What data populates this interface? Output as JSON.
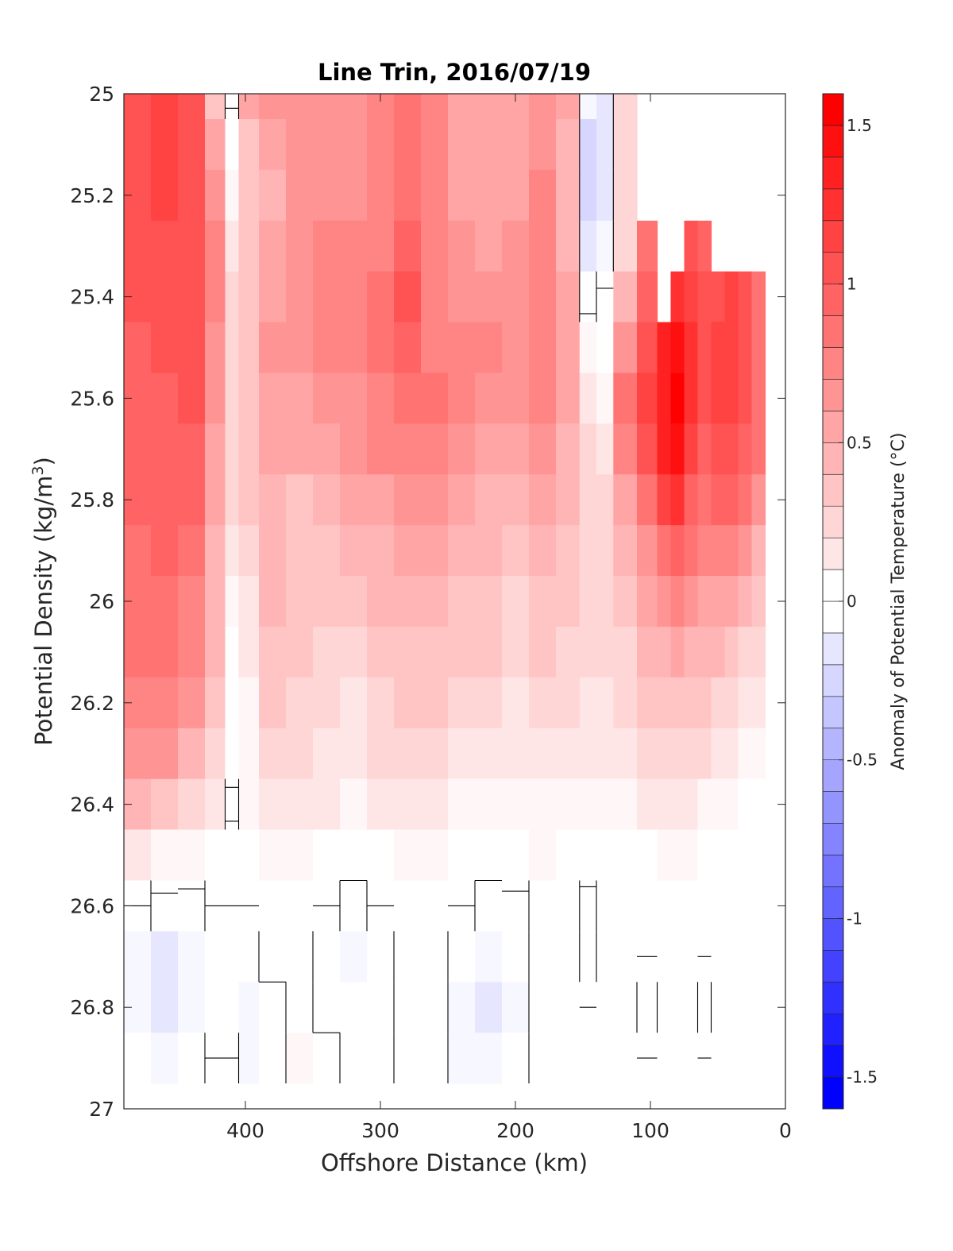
{
  "chart_data": {
    "type": "heatmap",
    "title": "Line Trin, 2016/07/19",
    "xlabel": "Offshore Distance (km)",
    "ylabel": "Potential Density (kg/m",
    "ylabel_superscript": "3",
    "ylabel_suffix": ")",
    "xlim": [
      490,
      0
    ],
    "ylim": [
      25,
      27
    ],
    "x_reversed": true,
    "y_reversed": true,
    "xticks": [
      400,
      300,
      200,
      100,
      0
    ],
    "xtick_labels": [
      "400",
      "300",
      "200",
      "100",
      "0"
    ],
    "yticks": [
      25,
      25.2,
      25.4,
      25.6,
      25.8,
      26,
      26.2,
      26.4,
      26.6,
      26.8,
      27
    ],
    "ytick_labels": [
      "25",
      "25.2",
      "25.4",
      "25.6",
      "25.8",
      "26",
      "26.2",
      "26.4",
      "26.6",
      "26.8",
      "27"
    ],
    "colorbar": {
      "label": "Anomaly of Potential Temperature (°C)",
      "range": [
        -1.6,
        1.6
      ],
      "step": 0.1,
      "ticks": [
        1.5,
        1,
        0.5,
        0,
        -0.5,
        -1,
        -1.5
      ],
      "tick_labels": [
        "1.5",
        "1",
        "0.5",
        "0",
        "-0.5",
        "-1",
        "-1.5"
      ]
    },
    "zero_contour": true,
    "grid": false,
    "x": [
      480,
      460,
      440,
      420,
      410,
      400,
      380,
      360,
      340,
      320,
      300,
      280,
      260,
      240,
      220,
      200,
      180,
      160,
      145,
      135,
      120,
      100,
      90,
      80,
      70,
      60,
      50,
      40,
      30,
      20
    ],
    "y": [
      25.0,
      25.1,
      25.2,
      25.3,
      25.4,
      25.5,
      25.6,
      25.7,
      25.8,
      25.9,
      26.0,
      26.1,
      26.2,
      26.3,
      26.4,
      26.5,
      26.6,
      26.7,
      26.8,
      26.9
    ],
    "columns": {
      "480": [
        1.15,
        1.15,
        1.1,
        1.1,
        1.1,
        1.0,
        1.0,
        1.0,
        1.0,
        0.95,
        0.95,
        0.9,
        0.85,
        0.75,
        0.5,
        0.2,
        0.0,
        -0.15,
        -0.15,
        -0.05
      ],
      "460": [
        1.2,
        1.2,
        1.2,
        1.15,
        1.15,
        1.1,
        1.05,
        1.05,
        1.0,
        1.0,
        0.95,
        0.9,
        0.85,
        0.7,
        0.45,
        0.15,
        -0.05,
        -0.25,
        -0.22,
        -0.1
      ],
      "440": [
        1.15,
        1.15,
        1.15,
        1.1,
        1.1,
        1.1,
        1.15,
        1.05,
        1.0,
        0.9,
        0.85,
        0.8,
        0.7,
        0.55,
        0.35,
        0.1,
        -0.05,
        -0.15,
        -0.12,
        -0.05
      ],
      "420": [
        0.4,
        0.6,
        0.7,
        0.85,
        0.85,
        0.75,
        0.7,
        0.65,
        0.6,
        0.55,
        0.5,
        0.5,
        0.4,
        0.3,
        0.2,
        0.05,
        0.0,
        -0.03,
        -0.02,
        0.0
      ],
      "410": [
        -0.02,
        0.05,
        0.15,
        0.25,
        0.3,
        0.35,
        0.35,
        0.35,
        0.3,
        0.2,
        0.12,
        0.05,
        0.03,
        0.02,
        -0.01,
        0.02,
        0.0,
        -0.02,
        -0.02,
        0.0
      ],
      "400": [
        0.6,
        0.45,
        0.4,
        0.4,
        0.4,
        0.45,
        0.45,
        0.45,
        0.4,
        0.3,
        0.25,
        0.2,
        0.15,
        0.1,
        0.1,
        0.05,
        0.0,
        -0.08,
        -0.12,
        -0.12
      ],
      "380": [
        0.75,
        0.6,
        0.55,
        0.6,
        0.65,
        0.7,
        0.65,
        0.6,
        0.55,
        0.5,
        0.5,
        0.45,
        0.45,
        0.35,
        0.2,
        0.1,
        0.05,
        0.02,
        -0.02,
        -0.02
      ],
      "360": [
        0.7,
        0.7,
        0.7,
        0.75,
        0.75,
        0.7,
        0.65,
        0.6,
        0.45,
        0.4,
        0.4,
        0.4,
        0.35,
        0.3,
        0.25,
        0.1,
        0.05,
        0.02,
        0.03,
        0.1
      ],
      "340": [
        0.7,
        0.7,
        0.75,
        0.8,
        0.85,
        0.85,
        0.75,
        0.65,
        0.5,
        0.45,
        0.4,
        0.35,
        0.3,
        0.25,
        0.2,
        0.08,
        0.0,
        -0.05,
        -0.02,
        0.02
      ],
      "320": [
        0.7,
        0.7,
        0.75,
        0.8,
        0.8,
        0.8,
        0.75,
        0.7,
        0.6,
        0.5,
        0.4,
        0.3,
        0.25,
        0.2,
        0.15,
        0.05,
        -0.05,
        -0.12,
        -0.08,
        -0.03
      ],
      "300": [
        0.8,
        0.8,
        0.85,
        0.85,
        0.9,
        0.9,
        0.85,
        0.8,
        0.65,
        0.55,
        0.5,
        0.4,
        0.35,
        0.3,
        0.2,
        0.08,
        0.0,
        -0.05,
        -0.04,
        -0.02
      ],
      "280": [
        0.9,
        0.9,
        0.95,
        1.05,
        1.1,
        1.0,
        0.95,
        0.85,
        0.75,
        0.6,
        0.55,
        0.45,
        0.4,
        0.35,
        0.2,
        0.1,
        0.05,
        0.02,
        0.02,
        0.0
      ],
      "260": [
        0.8,
        0.8,
        0.8,
        0.8,
        0.8,
        0.85,
        0.9,
        0.85,
        0.7,
        0.6,
        0.55,
        0.45,
        0.4,
        0.35,
        0.2,
        0.1,
        0.05,
        0.05,
        0.05,
        0.0
      ],
      "240": [
        0.65,
        0.65,
        0.65,
        0.7,
        0.75,
        0.85,
        0.8,
        0.7,
        0.6,
        0.55,
        0.45,
        0.4,
        0.35,
        0.25,
        0.15,
        0.05,
        0.0,
        -0.05,
        -0.1,
        -0.1
      ],
      "220": [
        0.6,
        0.6,
        0.6,
        0.65,
        0.7,
        0.8,
        0.75,
        0.65,
        0.55,
        0.5,
        0.45,
        0.4,
        0.3,
        0.25,
        0.15,
        0.05,
        -0.05,
        -0.15,
        -0.25,
        -0.15
      ],
      "200": [
        0.65,
        0.65,
        0.65,
        0.7,
        0.75,
        0.75,
        0.7,
        0.6,
        0.5,
        0.45,
        0.35,
        0.3,
        0.25,
        0.2,
        0.15,
        0.05,
        -0.02,
        -0.08,
        -0.12,
        -0.08
      ],
      "180": [
        0.75,
        0.75,
        0.8,
        0.85,
        0.85,
        0.85,
        0.8,
        0.7,
        0.6,
        0.5,
        0.45,
        0.4,
        0.35,
        0.25,
        0.15,
        0.1,
        0.05,
        0.02,
        0.0,
        0.0
      ],
      "160": [
        0.65,
        0.55,
        0.5,
        0.55,
        0.65,
        0.65,
        0.6,
        0.55,
        0.55,
        0.45,
        0.4,
        0.35,
        0.3,
        0.25,
        0.15,
        0.05,
        0.02,
        0.0,
        0.0,
        0.0
      ],
      "145": [
        -0.15,
        -0.3,
        -0.3,
        -0.2,
        -0.05,
        0.1,
        0.2,
        0.3,
        0.35,
        0.35,
        0.35,
        0.3,
        0.25,
        0.2,
        0.12,
        0.05,
        -0.03,
        -0.01,
        0.0,
        0.0
      ],
      "135": [
        -0.2,
        -0.25,
        -0.2,
        -0.1,
        0.02,
        0.08,
        0.15,
        0.25,
        0.3,
        0.35,
        0.35,
        0.3,
        0.25,
        0.2,
        0.12,
        0.05,
        0.02,
        0.0,
        0.0,
        0.0
      ],
      "120": [
        0.3,
        0.3,
        0.3,
        0.35,
        0.5,
        0.75,
        0.9,
        0.8,
        0.65,
        0.55,
        0.45,
        0.35,
        0.3,
        0.25,
        0.15,
        0.08,
        0.02,
        0.0,
        0.0,
        0.0
      ],
      "100": [
        null,
        null,
        null,
        0.9,
        1.05,
        1.15,
        1.2,
        1.1,
        0.95,
        0.75,
        0.6,
        0.5,
        0.4,
        0.3,
        0.2,
        0.08,
        0.02,
        0.0,
        -0.05,
        0.0
      ],
      "90": [
        null,
        null,
        null,
        null,
        null,
        1.4,
        1.45,
        1.4,
        1.2,
        0.9,
        0.7,
        0.55,
        0.45,
        0.35,
        0.2,
        0.1,
        0.05,
        0.02,
        0.0,
        0.0
      ],
      "80": [
        null,
        null,
        null,
        null,
        1.3,
        1.5,
        1.6,
        1.5,
        1.3,
        1.0,
        0.8,
        0.6,
        0.45,
        0.35,
        0.2,
        0.1,
        0.05,
        0.02,
        0.0,
        0.0
      ],
      "70": [
        null,
        null,
        null,
        1.1,
        1.25,
        1.3,
        1.3,
        1.2,
        1.05,
        0.9,
        0.7,
        0.55,
        0.45,
        0.3,
        0.2,
        0.1,
        0.02,
        0.0,
        0.0,
        0.0
      ],
      "60": [
        null,
        null,
        null,
        1.0,
        1.1,
        1.15,
        1.15,
        1.05,
        0.95,
        0.8,
        0.65,
        0.5,
        0.4,
        0.3,
        0.15,
        0.08,
        0.02,
        0.0,
        -0.02,
        0.0
      ],
      "50": [
        null,
        null,
        null,
        null,
        1.15,
        1.2,
        1.2,
        1.1,
        1.0,
        0.8,
        0.6,
        0.5,
        0.35,
        0.25,
        0.15,
        0.08,
        0.05,
        0.02,
        0.0,
        0.0
      ],
      "40": [
        null,
        null,
        null,
        null,
        1.2,
        1.2,
        1.2,
        1.15,
        1.0,
        0.8,
        0.6,
        0.45,
        0.3,
        0.2,
        0.1,
        0.05,
        0.02,
        0.0,
        0.0,
        0.0
      ],
      "30": [
        null,
        null,
        null,
        null,
        1.1,
        1.1,
        1.1,
        1.05,
        0.9,
        0.7,
        0.5,
        0.35,
        0.25,
        0.15,
        0.08,
        0.05,
        0.05,
        0.05,
        0.02,
        0.0
      ],
      "20": [
        null,
        null,
        null,
        null,
        0.9,
        0.95,
        0.95,
        0.9,
        0.75,
        0.55,
        0.4,
        0.3,
        0.2,
        0.1,
        0.05,
        0.02,
        0.02,
        0.0,
        0.0,
        0.0
      ]
    },
    "colors": {
      "positive": "#ff0000",
      "negative": "#0000ff",
      "neutral": "#ffffff",
      "contour": "#000000"
    }
  }
}
